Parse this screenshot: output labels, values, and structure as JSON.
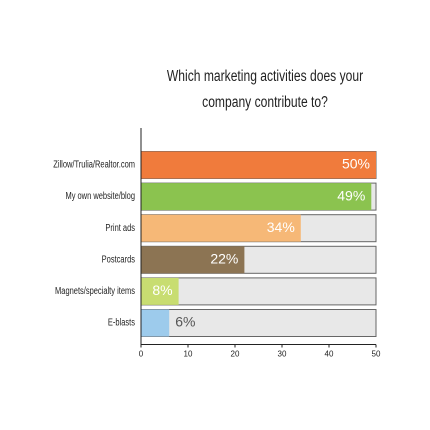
{
  "chart_data": {
    "type": "hbar",
    "title": "Which marketing activities does your company contribute to?",
    "categories": [
      "Zillow/Trulia/Realtor.com",
      "My own website/blog",
      "Print ads",
      "Postcards",
      "Magnets/specialty items",
      "E-blasts"
    ],
    "values": [
      50,
      49,
      34,
      22,
      8,
      6
    ],
    "value_labels": [
      "50%",
      "49%",
      "34%",
      "22%",
      "8%",
      "6%"
    ],
    "colors": [
      "#f07b3c",
      "#8bc34f",
      "#f6b877",
      "#8c7453",
      "#c8dd71",
      "#9dcbec"
    ],
    "xlim": [
      0,
      50
    ],
    "xticks": [
      0,
      10,
      20,
      30,
      40,
      50
    ]
  }
}
